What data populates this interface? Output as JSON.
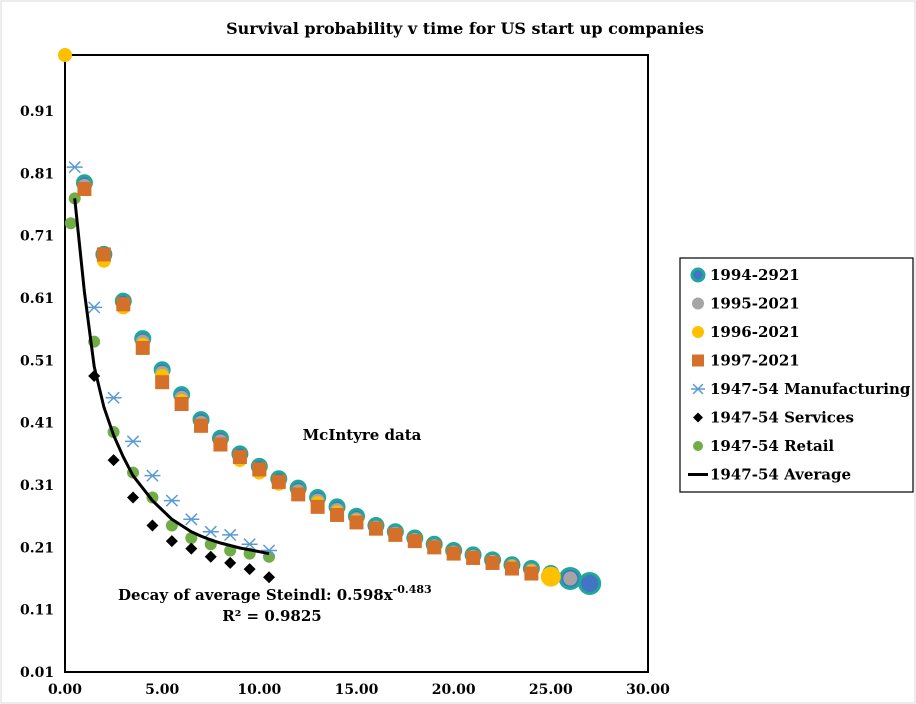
{
  "chart_data": {
    "type": "scatter",
    "title": "Survival probability v time for US start up companies",
    "xlabel": "",
    "ylabel": "",
    "xlim": [
      0,
      30
    ],
    "ylim": [
      0.01,
      1.0
    ],
    "x_ticks": [
      "0.00",
      "5.00",
      "10.00",
      "15.00",
      "20.00",
      "25.00",
      "30.00"
    ],
    "y_ticks": [
      "0.01",
      "0.11",
      "0.21",
      "0.31",
      "0.41",
      "0.51",
      "0.61",
      "0.71",
      "0.81",
      "0.91"
    ],
    "grid": false,
    "legend_position": "right",
    "annotations": {
      "mcintyre": "McIntyre data",
      "decay_prefix": "Decay of average Steindl: 0.598x",
      "decay_exponent": "-0.483",
      "r_squared": "R² = 0.9825"
    },
    "colors": {
      "teal_edge": "#1fa89a",
      "blue_fill": "#4472c4",
      "grey": "#a5a5a5",
      "gold": "#ffc000",
      "orange": "#d4702a",
      "manufacturing": "#5b9bd5",
      "services": "#000000",
      "retail": "#70ad47",
      "average_line": "#000000"
    },
    "series": [
      {
        "name": "1994-2921",
        "marker": "circle-teal",
        "points": [
          [
            1,
            0.795
          ],
          [
            2,
            0.68
          ],
          [
            3,
            0.605
          ],
          [
            4,
            0.545
          ],
          [
            5,
            0.495
          ],
          [
            6,
            0.455
          ],
          [
            7,
            0.415
          ],
          [
            8,
            0.385
          ],
          [
            9,
            0.36
          ],
          [
            10,
            0.34
          ],
          [
            11,
            0.32
          ],
          [
            12,
            0.305
          ],
          [
            13,
            0.29
          ],
          [
            14,
            0.275
          ],
          [
            15,
            0.26
          ],
          [
            16,
            0.245
          ],
          [
            17,
            0.235
          ],
          [
            18,
            0.225
          ],
          [
            19,
            0.215
          ],
          [
            20,
            0.205
          ],
          [
            21,
            0.198
          ],
          [
            22,
            0.19
          ],
          [
            23,
            0.182
          ],
          [
            24,
            0.176
          ],
          [
            25,
            0.168
          ],
          [
            26,
            0.16
          ],
          [
            27,
            0.152
          ]
        ]
      },
      {
        "name": "1995-2021",
        "marker": "circle-grey",
        "points": [
          [
            1,
            0.79
          ],
          [
            2,
            0.675
          ],
          [
            3,
            0.6
          ],
          [
            4,
            0.54
          ],
          [
            5,
            0.49
          ],
          [
            6,
            0.45
          ],
          [
            7,
            0.41
          ],
          [
            8,
            0.38
          ],
          [
            9,
            0.355
          ],
          [
            10,
            0.335
          ],
          [
            11,
            0.315
          ],
          [
            12,
            0.3
          ],
          [
            13,
            0.285
          ],
          [
            14,
            0.27
          ],
          [
            15,
            0.255
          ],
          [
            16,
            0.242
          ],
          [
            17,
            0.232
          ],
          [
            18,
            0.222
          ],
          [
            19,
            0.212
          ],
          [
            20,
            0.202
          ],
          [
            21,
            0.195
          ],
          [
            22,
            0.187
          ],
          [
            23,
            0.18
          ],
          [
            24,
            0.173
          ],
          [
            25,
            0.166
          ],
          [
            26,
            0.16
          ]
        ]
      },
      {
        "name": "1996-2021",
        "marker": "circle-gold",
        "points": [
          [
            0,
            1.0
          ],
          [
            1,
            0.785
          ],
          [
            2,
            0.67
          ],
          [
            3,
            0.595
          ],
          [
            4,
            0.535
          ],
          [
            5,
            0.485
          ],
          [
            6,
            0.445
          ],
          [
            7,
            0.405
          ],
          [
            8,
            0.375
          ],
          [
            9,
            0.35
          ],
          [
            10,
            0.33
          ],
          [
            11,
            0.312
          ],
          [
            12,
            0.296
          ],
          [
            13,
            0.281
          ],
          [
            14,
            0.266
          ],
          [
            15,
            0.252
          ],
          [
            16,
            0.24
          ],
          [
            17,
            0.23
          ],
          [
            18,
            0.22
          ],
          [
            19,
            0.21
          ],
          [
            20,
            0.2
          ],
          [
            21,
            0.193
          ],
          [
            22,
            0.186
          ],
          [
            23,
            0.178
          ],
          [
            24,
            0.171
          ],
          [
            25,
            0.163
          ]
        ]
      },
      {
        "name": "1997-2021",
        "marker": "square-orange",
        "points": [
          [
            1,
            0.785
          ],
          [
            2,
            0.68
          ],
          [
            3,
            0.6
          ],
          [
            4,
            0.53
          ],
          [
            5,
            0.475
          ],
          [
            6,
            0.44
          ],
          [
            7,
            0.405
          ],
          [
            8,
            0.375
          ],
          [
            9,
            0.355
          ],
          [
            10,
            0.335
          ],
          [
            11,
            0.315
          ],
          [
            12,
            0.295
          ],
          [
            13,
            0.275
          ],
          [
            14,
            0.262
          ],
          [
            15,
            0.25
          ],
          [
            16,
            0.24
          ],
          [
            17,
            0.23
          ],
          [
            18,
            0.22
          ],
          [
            19,
            0.21
          ],
          [
            20,
            0.2
          ],
          [
            21,
            0.193
          ],
          [
            22,
            0.185
          ],
          [
            23,
            0.176
          ],
          [
            24,
            0.168
          ]
        ]
      },
      {
        "name": "1947-54 Manufacturing",
        "marker": "star",
        "points": [
          [
            0.5,
            0.82
          ],
          [
            1.5,
            0.595
          ],
          [
            2.5,
            0.45
          ],
          [
            3.5,
            0.38
          ],
          [
            4.5,
            0.325
          ],
          [
            5.5,
            0.285
          ],
          [
            6.5,
            0.255
          ],
          [
            7.5,
            0.235
          ],
          [
            8.5,
            0.23
          ],
          [
            9.5,
            0.215
          ],
          [
            10.5,
            0.205
          ]
        ]
      },
      {
        "name": "1947-54 Services",
        "marker": "diamond",
        "points": [
          [
            1.5,
            0.485
          ],
          [
            2.5,
            0.35
          ],
          [
            3.5,
            0.29
          ],
          [
            4.5,
            0.245
          ],
          [
            5.5,
            0.22
          ],
          [
            6.5,
            0.208
          ],
          [
            7.5,
            0.195
          ],
          [
            8.5,
            0.185
          ],
          [
            9.5,
            0.175
          ],
          [
            10.5,
            0.162
          ]
        ]
      },
      {
        "name": "1947-54 Retail",
        "marker": "circle-green",
        "points": [
          [
            0.3,
            0.73
          ],
          [
            0.5,
            0.77
          ],
          [
            1.5,
            0.54
          ],
          [
            2.5,
            0.395
          ],
          [
            3.5,
            0.33
          ],
          [
            4.5,
            0.29
          ],
          [
            5.5,
            0.245
          ],
          [
            6.5,
            0.225
          ],
          [
            7.5,
            0.215
          ],
          [
            8.5,
            0.205
          ],
          [
            9.5,
            0.2
          ],
          [
            10.5,
            0.195
          ]
        ]
      },
      {
        "name": "1947-54 Average",
        "marker": "line",
        "points": [
          [
            0.5,
            0.77
          ],
          [
            1,
            0.62
          ],
          [
            1.5,
            0.5
          ],
          [
            2,
            0.435
          ],
          [
            2.5,
            0.39
          ],
          [
            3,
            0.355
          ],
          [
            3.5,
            0.325
          ],
          [
            4,
            0.305
          ],
          [
            4.5,
            0.285
          ],
          [
            5,
            0.27
          ],
          [
            5.5,
            0.255
          ],
          [
            6,
            0.245
          ],
          [
            6.5,
            0.235
          ],
          [
            7,
            0.228
          ],
          [
            7.5,
            0.222
          ],
          [
            8,
            0.217
          ],
          [
            8.5,
            0.213
          ],
          [
            9,
            0.209
          ],
          [
            9.5,
            0.206
          ],
          [
            10,
            0.203
          ],
          [
            10.5,
            0.2
          ]
        ]
      }
    ]
  }
}
